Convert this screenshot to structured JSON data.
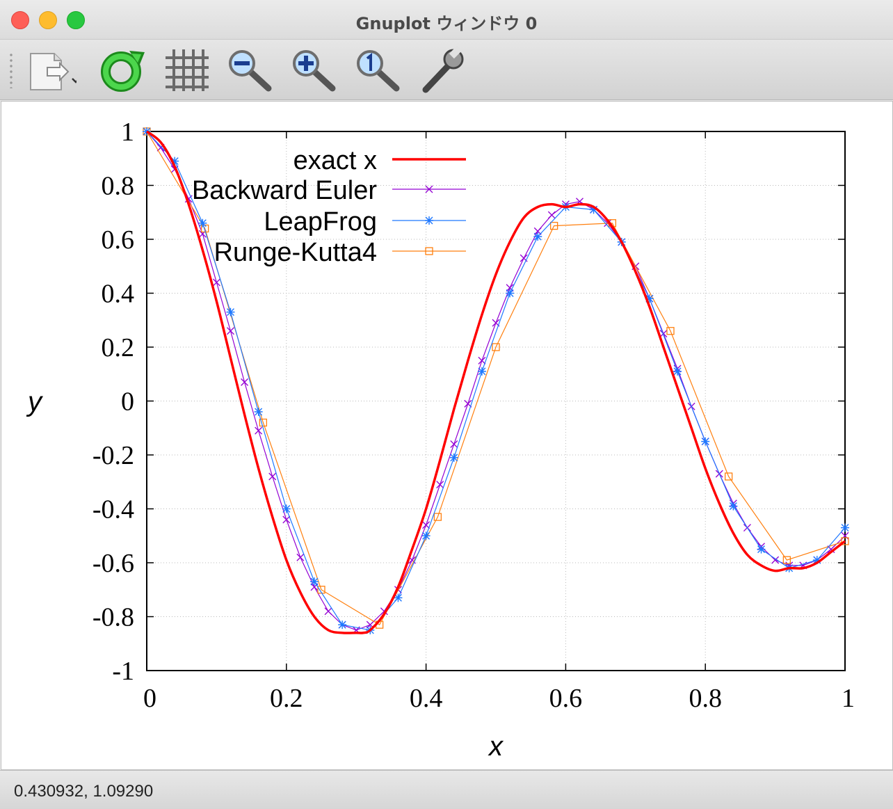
{
  "window": {
    "title": "Gnuplot ウィンドウ 0"
  },
  "toolbar": {
    "items": [
      {
        "icon": "export-icon"
      },
      {
        "icon": "replot-icon"
      },
      {
        "icon": "grid-icon"
      },
      {
        "icon": "zoom-out-icon"
      },
      {
        "icon": "zoom-in-icon"
      },
      {
        "icon": "zoom-reset-icon"
      },
      {
        "icon": "settings-wrench-icon"
      }
    ]
  },
  "status": {
    "coordinates": "0.430932,  1.09290"
  },
  "chart_data": {
    "type": "line",
    "xlabel": "x",
    "ylabel": "y",
    "xlim": [
      0,
      1
    ],
    "ylim": [
      -1,
      1
    ],
    "x_ticks": [
      "0",
      "0.2",
      "0.4",
      "0.6",
      "0.8",
      "1"
    ],
    "y_ticks": [
      "1",
      "0.8",
      "0.6",
      "0.4",
      "0.2",
      "0",
      "-0.2",
      "-0.4",
      "-0.6",
      "-0.8",
      "-1"
    ],
    "grid": true,
    "legend_position": "top-left",
    "series": [
      {
        "name": "exact x",
        "color": "#ff0000",
        "marker": "none",
        "x": [
          0,
          0.02,
          0.04,
          0.06,
          0.08,
          0.1,
          0.12,
          0.14,
          0.16,
          0.18,
          0.2,
          0.22,
          0.24,
          0.26,
          0.28,
          0.3,
          0.31,
          0.32,
          0.34,
          0.36,
          0.38,
          0.4,
          0.42,
          0.44,
          0.46,
          0.48,
          0.5,
          0.52,
          0.54,
          0.56,
          0.58,
          0.6,
          0.62,
          0.64,
          0.66,
          0.68,
          0.7,
          0.72,
          0.74,
          0.76,
          0.78,
          0.8,
          0.82,
          0.84,
          0.86,
          0.88,
          0.9,
          0.92,
          0.94,
          0.96,
          0.98,
          1.0
        ],
        "y": [
          1,
          0.96,
          0.87,
          0.73,
          0.56,
          0.37,
          0.16,
          -0.05,
          -0.25,
          -0.43,
          -0.59,
          -0.71,
          -0.8,
          -0.85,
          -0.86,
          -0.86,
          -0.86,
          -0.85,
          -0.79,
          -0.69,
          -0.55,
          -0.4,
          -0.22,
          -0.03,
          0.15,
          0.32,
          0.47,
          0.59,
          0.68,
          0.72,
          0.73,
          0.72,
          0.73,
          0.72,
          0.67,
          0.59,
          0.48,
          0.35,
          0.2,
          0.05,
          -0.1,
          -0.25,
          -0.38,
          -0.49,
          -0.57,
          -0.61,
          -0.63,
          -0.62,
          -0.62,
          -0.6,
          -0.56,
          -0.52
        ]
      },
      {
        "name": "Backward Euler",
        "color": "#9400d3",
        "marker": "x",
        "x": [
          0,
          0.02,
          0.04,
          0.06,
          0.08,
          0.1,
          0.12,
          0.14,
          0.16,
          0.18,
          0.2,
          0.22,
          0.24,
          0.26,
          0.28,
          0.3,
          0.32,
          0.34,
          0.36,
          0.38,
          0.4,
          0.42,
          0.44,
          0.46,
          0.48,
          0.5,
          0.52,
          0.54,
          0.56,
          0.58,
          0.6,
          0.62,
          0.64,
          0.66,
          0.68,
          0.7,
          0.72,
          0.74,
          0.76,
          0.78,
          0.8,
          0.82,
          0.84,
          0.86,
          0.88,
          0.9,
          0.92,
          0.94,
          0.96,
          0.98,
          1.0
        ],
        "y": [
          1,
          0.94,
          0.86,
          0.75,
          0.62,
          0.44,
          0.26,
          0.07,
          -0.11,
          -0.28,
          -0.44,
          -0.58,
          -0.69,
          -0.78,
          -0.83,
          -0.85,
          -0.83,
          -0.78,
          -0.7,
          -0.59,
          -0.46,
          -0.31,
          -0.16,
          -0.01,
          0.15,
          0.29,
          0.42,
          0.53,
          0.63,
          0.69,
          0.73,
          0.74,
          0.71,
          0.66,
          0.59,
          0.5,
          0.38,
          0.25,
          0.12,
          -0.02,
          -0.15,
          -0.27,
          -0.38,
          -0.47,
          -0.54,
          -0.59,
          -0.61,
          -0.61,
          -0.59,
          -0.55,
          -0.5
        ]
      },
      {
        "name": "LeapFrog",
        "color": "#1e78ff",
        "marker": "*",
        "x": [
          0,
          0.04,
          0.08,
          0.12,
          0.16,
          0.2,
          0.24,
          0.28,
          0.32,
          0.36,
          0.4,
          0.44,
          0.48,
          0.52,
          0.56,
          0.6,
          0.64,
          0.68,
          0.72,
          0.76,
          0.8,
          0.84,
          0.88,
          0.92,
          0.96,
          1.0
        ],
        "y": [
          1,
          0.89,
          0.66,
          0.33,
          -0.04,
          -0.4,
          -0.67,
          -0.83,
          -0.85,
          -0.73,
          -0.5,
          -0.21,
          0.11,
          0.4,
          0.61,
          0.72,
          0.71,
          0.59,
          0.38,
          0.11,
          -0.15,
          -0.39,
          -0.55,
          -0.62,
          -0.59,
          -0.47
        ]
      },
      {
        "name": "Runge-Kutta4",
        "color": "#ff7f0e",
        "marker": "square",
        "x": [
          0,
          0.0833,
          0.1667,
          0.25,
          0.3333,
          0.4167,
          0.5,
          0.5833,
          0.6667,
          0.75,
          0.8333,
          0.9167,
          1.0
        ],
        "y": [
          1,
          0.64,
          -0.08,
          -0.7,
          -0.83,
          -0.43,
          0.2,
          0.65,
          0.66,
          0.26,
          -0.28,
          -0.59,
          -0.52
        ]
      }
    ]
  }
}
